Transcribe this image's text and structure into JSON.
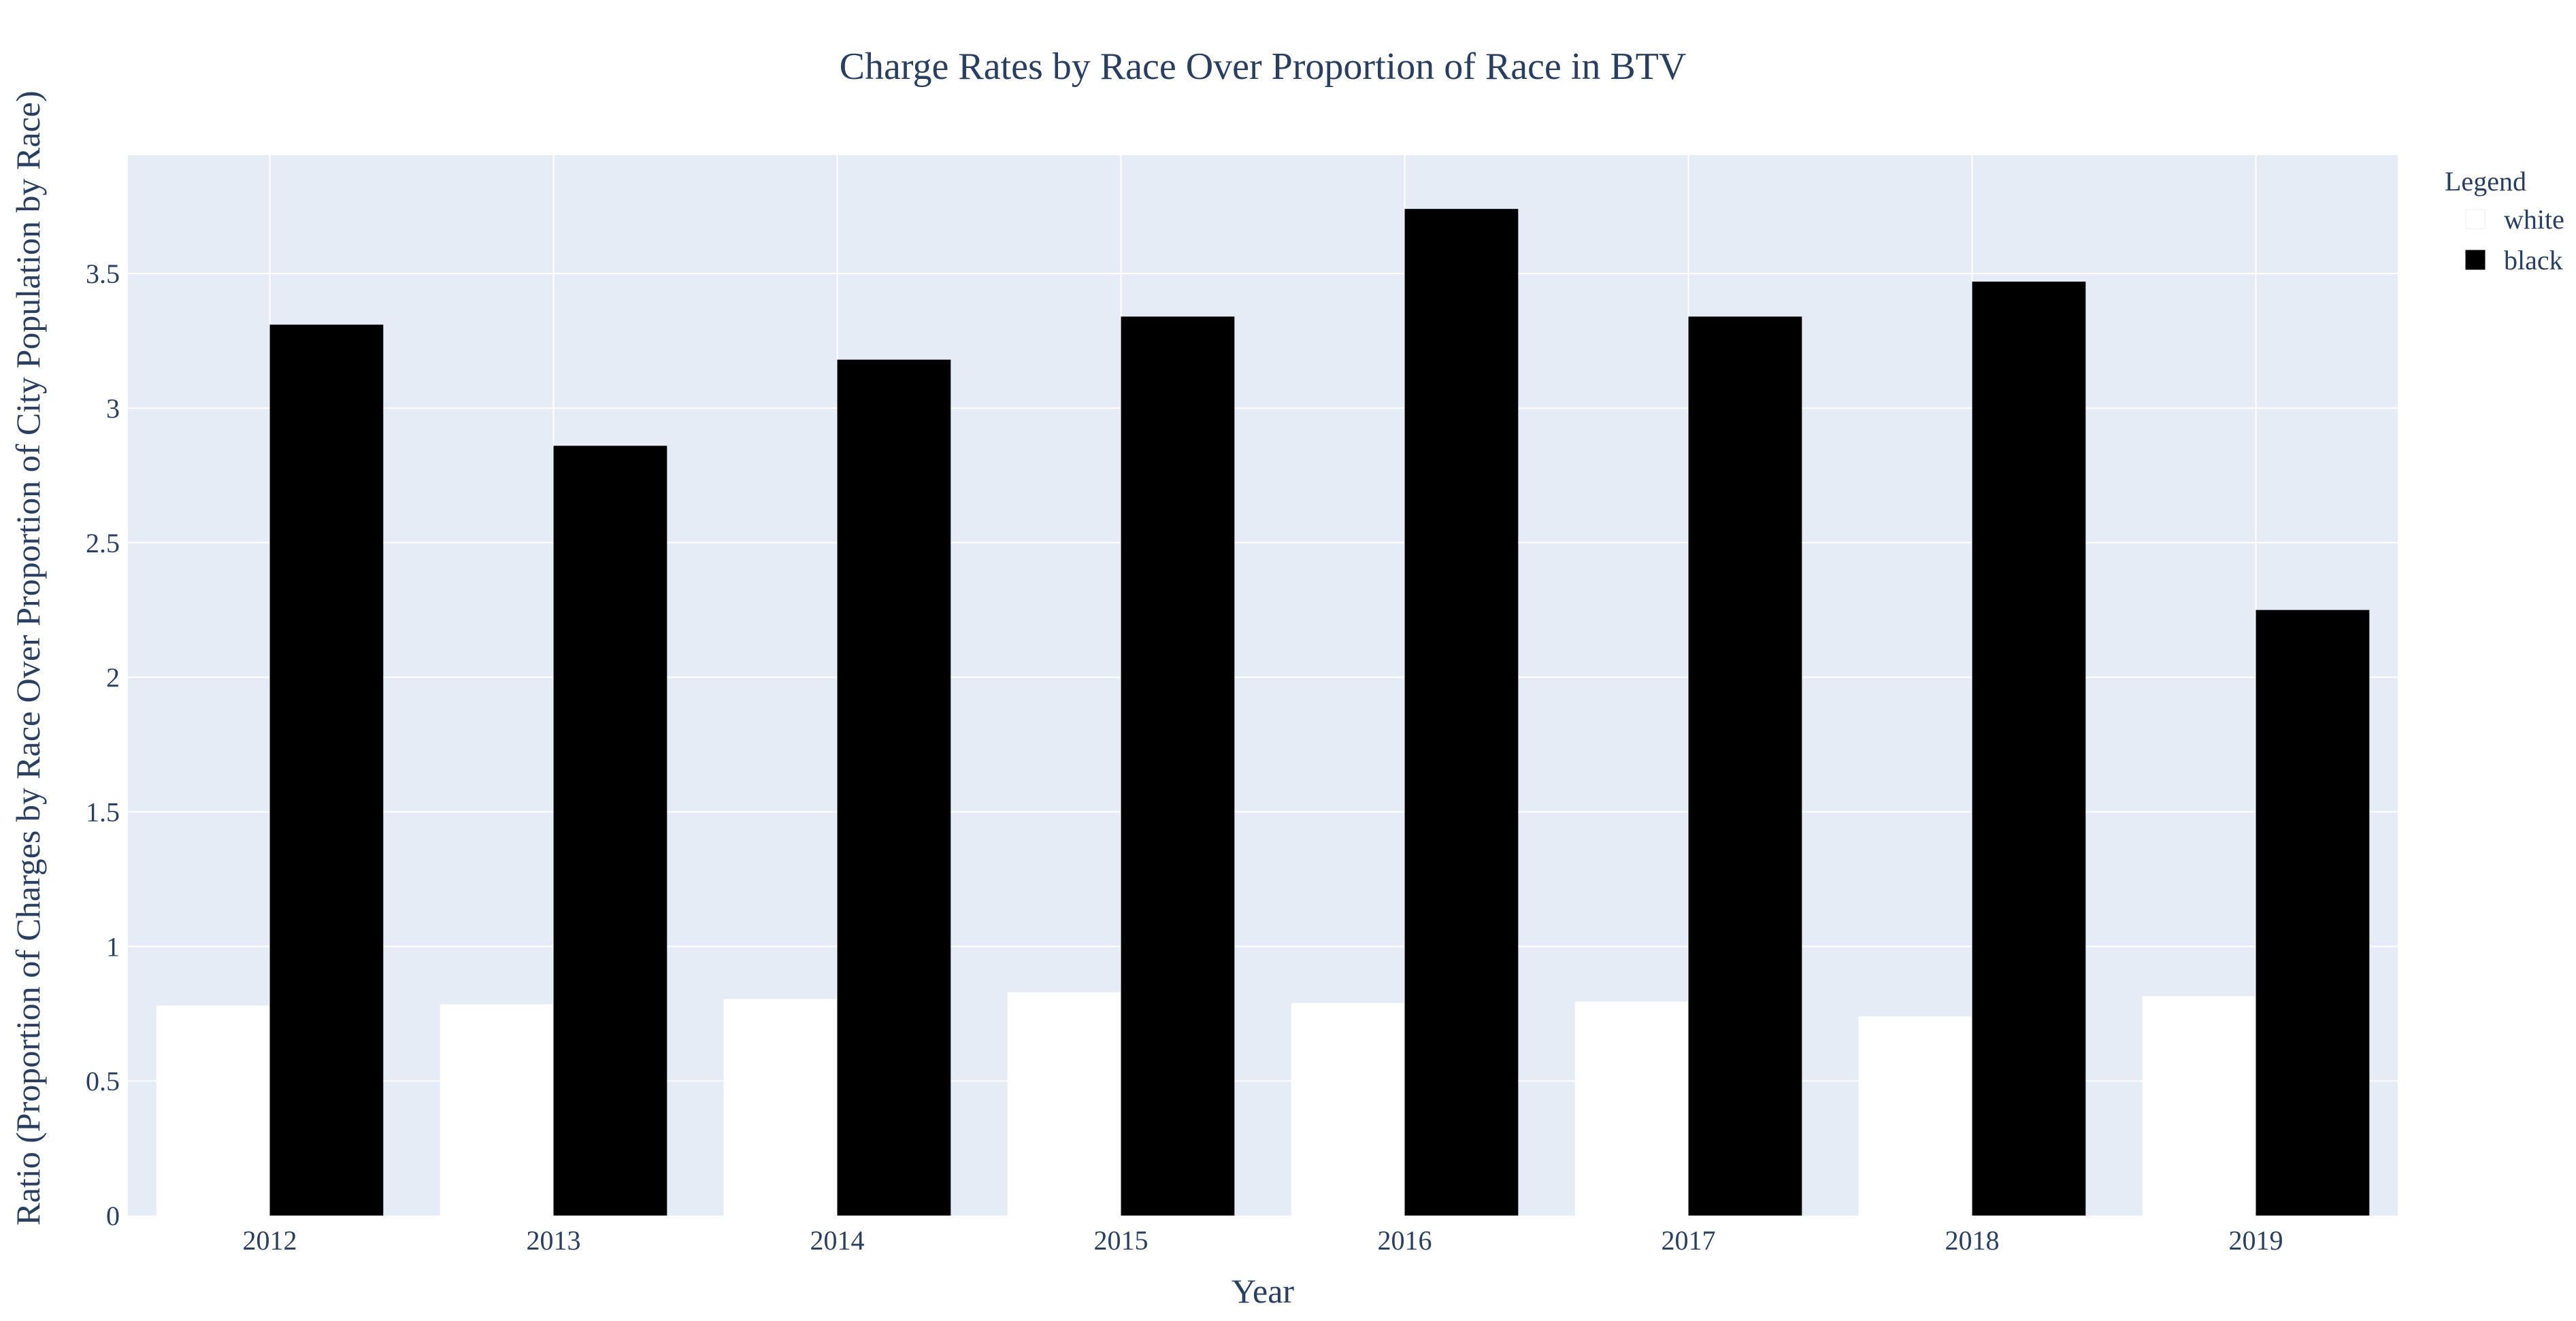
{
  "chart_data": {
    "type": "bar",
    "title": "Charge Rates by Race Over Proportion of Race in BTV",
    "xlabel": "Year",
    "ylabel": "Ratio (Proportion of Charges by Race Over Proportion of City Population by Race)",
    "categories": [
      "2012",
      "2013",
      "2014",
      "2015",
      "2016",
      "2017",
      "2018",
      "2019"
    ],
    "series": [
      {
        "name": "white",
        "color": "#ffffff",
        "values": [
          0.78,
          0.785,
          0.805,
          0.83,
          0.79,
          0.795,
          0.74,
          0.815
        ]
      },
      {
        "name": "black",
        "color": "#000000",
        "values": [
          3.31,
          2.86,
          3.18,
          3.34,
          3.74,
          3.34,
          3.47,
          2.25
        ]
      }
    ],
    "ylim": [
      0,
      3.94
    ],
    "yticks": [
      0,
      0.5,
      1,
      1.5,
      2,
      2.5,
      3,
      3.5
    ],
    "ytick_labels": [
      "0",
      "0.5",
      "1",
      "1.5",
      "2",
      "2.5",
      "3",
      "3.5"
    ],
    "grid": true,
    "legend": {
      "title": "Legend",
      "placement": "top-right"
    },
    "colors": {
      "plot_background": "#e5ecf6",
      "grid": "#ffffff",
      "text": "#2a3f5f"
    }
  }
}
